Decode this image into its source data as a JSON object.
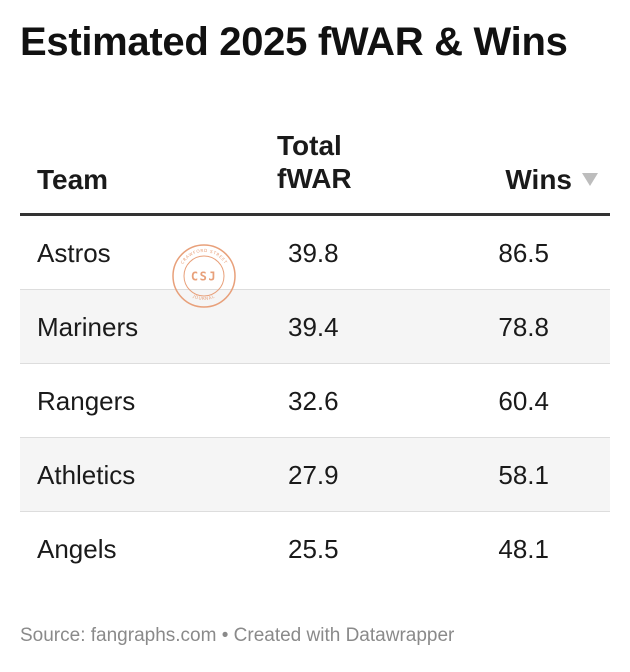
{
  "chart_data": {
    "type": "table",
    "title": "Estimated 2025 fWAR & Wins",
    "columns": [
      {
        "key": "team",
        "line1": "Team",
        "line2": ""
      },
      {
        "key": "fwar",
        "line1": "Total",
        "line2": "fWAR"
      },
      {
        "key": "wins",
        "line1": "Wins",
        "line2": ""
      }
    ],
    "sort": {
      "column": "wins",
      "direction": "descending"
    },
    "rows": [
      {
        "team": "Astros",
        "fwar": "39.8",
        "wins": "86.5"
      },
      {
        "team": "Mariners",
        "fwar": "39.4",
        "wins": "78.8"
      },
      {
        "team": "Rangers",
        "fwar": "32.6",
        "wins": "60.4"
      },
      {
        "team": "Athletics",
        "fwar": "27.9",
        "wins": "58.1"
      },
      {
        "team": "Angels",
        "fwar": "25.5",
        "wins": "48.1"
      }
    ],
    "footer": "Source: fangraphs.com • Created with Datawrapper"
  },
  "watermark": {
    "text": "CSJ",
    "ring_text": "CRAWFORD STREET JOURNAL",
    "color": "#e8a07a"
  },
  "colors": {
    "header_rule": "#333333",
    "alt_row": "#f5f5f5",
    "sort_arrow": "#bdbdbd",
    "footer": "#8a8a8a"
  }
}
